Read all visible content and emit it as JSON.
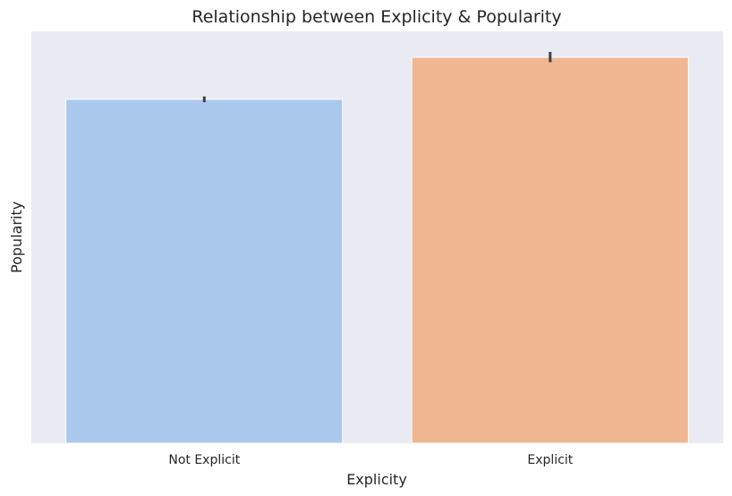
{
  "chart_data": {
    "type": "bar",
    "title": "Relationship between Explicity & Popularity",
    "xlabel": "Explicity",
    "ylabel": "Popularity",
    "categories": [
      "Not Explicit",
      "Explicit"
    ],
    "values": [
      0.835,
      0.937
    ],
    "error_bars": [
      [
        0.828,
        0.842
      ],
      [
        0.925,
        0.95
      ]
    ],
    "ylim": [
      0,
      1
    ],
    "y_ticks_visible": false,
    "grid": false,
    "legend": "none",
    "colors": {
      "plot_background": "#eaeaf2",
      "bar_fills": [
        "#abc9ec",
        "#f0b793"
      ],
      "bar_edge": "#ffffff",
      "error_bar": "#3f3f3f",
      "text": "#262626"
    }
  }
}
